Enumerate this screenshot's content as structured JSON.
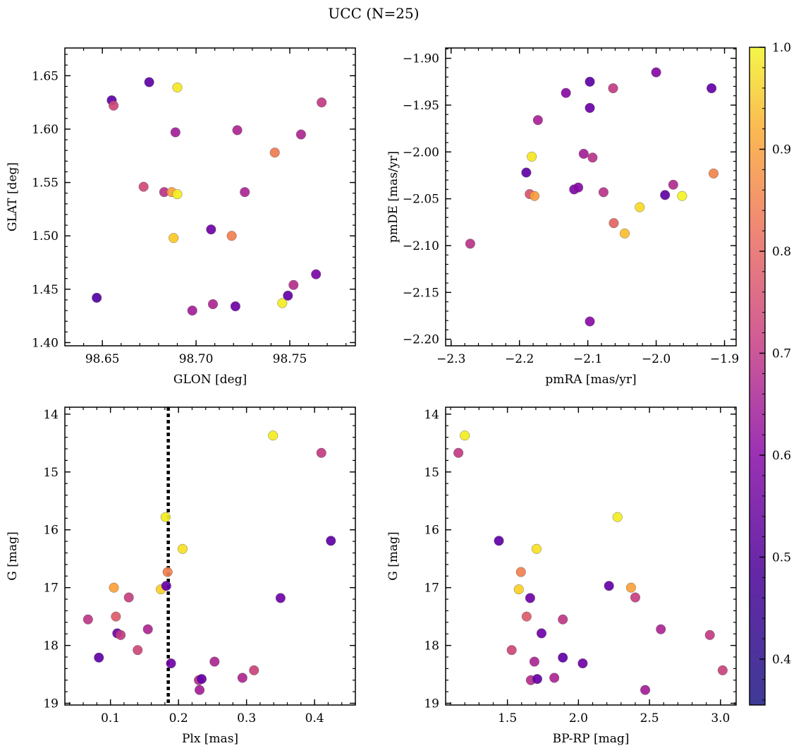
{
  "figure": {
    "title": "UCC (N=25)"
  },
  "colorbar": {
    "range": [
      0.355,
      1.0
    ],
    "ticks": [
      "0.4",
      "0.5",
      "0.6",
      "0.7",
      "0.8",
      "0.9",
      "1.0"
    ],
    "tick_values": [
      0.4,
      0.5,
      0.6,
      0.7,
      0.8,
      0.9,
      1.0
    ],
    "colormap": "plasma"
  },
  "chart_data": [
    {
      "type": "scatter",
      "xlabel": "GLON [deg]",
      "ylabel": "GLAT [deg]",
      "xlim": [
        98.63,
        98.785
      ],
      "ylim": [
        1.397,
        1.676
      ],
      "xticks": [
        98.65,
        98.7,
        98.75
      ],
      "xtick_labels": [
        "98.65",
        "98.70",
        "98.75"
      ],
      "yticks": [
        1.4,
        1.45,
        1.5,
        1.55,
        1.6,
        1.65
      ],
      "ytick_labels": [
        "1.40",
        "1.45",
        "1.50",
        "1.55",
        "1.60",
        "1.65"
      ],
      "points": [
        {
          "x": 98.647,
          "y": 1.442,
          "c": 0.4
        },
        {
          "x": 98.655,
          "y": 1.627,
          "c": 0.42
        },
        {
          "x": 98.656,
          "y": 1.622,
          "c": 0.65
        },
        {
          "x": 98.672,
          "y": 1.546,
          "c": 0.66
        },
        {
          "x": 98.675,
          "y": 1.644,
          "c": 0.42
        },
        {
          "x": 98.683,
          "y": 1.541,
          "c": 0.6
        },
        {
          "x": 98.687,
          "y": 1.541,
          "c": 0.85
        },
        {
          "x": 98.688,
          "y": 1.498,
          "c": 0.92
        },
        {
          "x": 98.689,
          "y": 1.597,
          "c": 0.55
        },
        {
          "x": 98.69,
          "y": 1.539,
          "c": 0.98
        },
        {
          "x": 98.69,
          "y": 1.639,
          "c": 0.97
        },
        {
          "x": 98.698,
          "y": 1.43,
          "c": 0.55
        },
        {
          "x": 98.708,
          "y": 1.506,
          "c": 0.45
        },
        {
          "x": 98.709,
          "y": 1.436,
          "c": 0.57
        },
        {
          "x": 98.719,
          "y": 1.5,
          "c": 0.78
        },
        {
          "x": 98.721,
          "y": 1.434,
          "c": 0.45
        },
        {
          "x": 98.722,
          "y": 1.599,
          "c": 0.57
        },
        {
          "x": 98.726,
          "y": 1.541,
          "c": 0.57
        },
        {
          "x": 98.742,
          "y": 1.578,
          "c": 0.77
        },
        {
          "x": 98.746,
          "y": 1.437,
          "c": 0.98
        },
        {
          "x": 98.749,
          "y": 1.444,
          "c": 0.43
        },
        {
          "x": 98.752,
          "y": 1.454,
          "c": 0.59
        },
        {
          "x": 98.756,
          "y": 1.595,
          "c": 0.57
        },
        {
          "x": 98.764,
          "y": 1.464,
          "c": 0.47
        },
        {
          "x": 98.767,
          "y": 1.625,
          "c": 0.62
        }
      ]
    },
    {
      "type": "scatter",
      "xlabel": "pmRA [mas/yr]",
      "ylabel": "pmDE [mas/yr]",
      "xlim": [
        -2.308,
        -1.883
      ],
      "ylim": [
        -2.207,
        -1.889
      ],
      "xticks": [
        -2.3,
        -2.2,
        -2.1,
        -2.0,
        -1.9
      ],
      "xtick_labels": [
        "−2.3",
        "−2.2",
        "−2.1",
        "−2.0",
        "−1.9"
      ],
      "yticks": [
        -2.2,
        -2.15,
        -2.1,
        -2.05,
        -2.0,
        -1.95,
        -1.9
      ],
      "ytick_labels": [
        "−2.20",
        "−2.15",
        "−2.10",
        "−2.05",
        "−2.00",
        "−1.95",
        "−1.90"
      ],
      "points": [
        {
          "x": -2.272,
          "y": -2.098,
          "c": 0.6
        },
        {
          "x": -2.19,
          "y": -2.022,
          "c": 0.42
        },
        {
          "x": -2.185,
          "y": -2.045,
          "c": 0.68
        },
        {
          "x": -2.182,
          "y": -2.005,
          "c": 0.97
        },
        {
          "x": -2.178,
          "y": -2.047,
          "c": 0.84
        },
        {
          "x": -2.173,
          "y": -1.966,
          "c": 0.56
        },
        {
          "x": -2.132,
          "y": -1.937,
          "c": 0.5
        },
        {
          "x": -2.12,
          "y": -2.04,
          "c": 0.48
        },
        {
          "x": -2.114,
          "y": -2.038,
          "c": 0.49
        },
        {
          "x": -2.106,
          "y": -2.002,
          "c": 0.55
        },
        {
          "x": -2.097,
          "y": -1.925,
          "c": 0.42
        },
        {
          "x": -2.097,
          "y": -1.953,
          "c": 0.44
        },
        {
          "x": -2.097,
          "y": -2.181,
          "c": 0.5
        },
        {
          "x": -2.093,
          "y": -2.006,
          "c": 0.6
        },
        {
          "x": -2.077,
          "y": -2.043,
          "c": 0.6
        },
        {
          "x": -2.063,
          "y": -1.932,
          "c": 0.62
        },
        {
          "x": -2.062,
          "y": -2.076,
          "c": 0.72
        },
        {
          "x": -2.046,
          "y": -2.087,
          "c": 0.9
        },
        {
          "x": -2.024,
          "y": -2.059,
          "c": 0.95
        },
        {
          "x": -2.0,
          "y": -1.915,
          "c": 0.49
        },
        {
          "x": -1.987,
          "y": -2.046,
          "c": 0.42
        },
        {
          "x": -1.975,
          "y": -2.035,
          "c": 0.58
        },
        {
          "x": -1.962,
          "y": -2.047,
          "c": 0.99
        },
        {
          "x": -1.919,
          "y": -1.932,
          "c": 0.43
        },
        {
          "x": -1.916,
          "y": -2.023,
          "c": 0.79
        }
      ]
    },
    {
      "type": "scatter",
      "xlabel": "Plx [mas]",
      "ylabel": "G [mag]",
      "xlim": [
        0.033,
        0.46
      ],
      "ylim": [
        19.03,
        13.88
      ],
      "xticks": [
        0.1,
        0.2,
        0.3,
        0.4
      ],
      "xtick_labels": [
        "0.1",
        "0.2",
        "0.3",
        "0.4"
      ],
      "yticks": [
        14,
        15,
        16,
        17,
        18,
        19
      ],
      "ytick_labels": [
        "14",
        "15",
        "16",
        "17",
        "18",
        "19"
      ],
      "vline": 0.185,
      "points": [
        {
          "x": 0.067,
          "y": 17.55,
          "c": 0.61
        },
        {
          "x": 0.083,
          "y": 18.21,
          "c": 0.42
        },
        {
          "x": 0.105,
          "y": 17.0,
          "c": 0.85
        },
        {
          "x": 0.108,
          "y": 17.5,
          "c": 0.7
        },
        {
          "x": 0.11,
          "y": 17.79,
          "c": 0.45
        },
        {
          "x": 0.115,
          "y": 17.82,
          "c": 0.62
        },
        {
          "x": 0.127,
          "y": 17.17,
          "c": 0.63
        },
        {
          "x": 0.14,
          "y": 18.08,
          "c": 0.65
        },
        {
          "x": 0.155,
          "y": 17.72,
          "c": 0.57
        },
        {
          "x": 0.174,
          "y": 17.03,
          "c": 0.93
        },
        {
          "x": 0.181,
          "y": 15.78,
          "c": 0.98
        },
        {
          "x": 0.182,
          "y": 16.97,
          "c": 0.43
        },
        {
          "x": 0.184,
          "y": 16.73,
          "c": 0.78
        },
        {
          "x": 0.189,
          "y": 18.31,
          "c": 0.45
        },
        {
          "x": 0.206,
          "y": 16.33,
          "c": 0.96
        },
        {
          "x": 0.23,
          "y": 18.6,
          "c": 0.59
        },
        {
          "x": 0.231,
          "y": 18.77,
          "c": 0.55
        },
        {
          "x": 0.234,
          "y": 18.58,
          "c": 0.43
        },
        {
          "x": 0.253,
          "y": 18.28,
          "c": 0.57
        },
        {
          "x": 0.294,
          "y": 18.56,
          "c": 0.57
        },
        {
          "x": 0.311,
          "y": 18.43,
          "c": 0.64
        },
        {
          "x": 0.339,
          "y": 14.37,
          "c": 0.98
        },
        {
          "x": 0.35,
          "y": 17.18,
          "c": 0.45
        },
        {
          "x": 0.41,
          "y": 14.67,
          "c": 0.62
        },
        {
          "x": 0.424,
          "y": 16.19,
          "c": 0.42
        }
      ]
    },
    {
      "type": "scatter",
      "xlabel": "BP-RP [mag]",
      "ylabel": "G [mag]",
      "xlim": [
        1.065,
        3.11
      ],
      "ylim": [
        19.03,
        13.88
      ],
      "xticks": [
        1.5,
        2.0,
        2.5,
        3.0
      ],
      "xtick_labels": [
        "1.5",
        "2.0",
        "2.5",
        "3.0"
      ],
      "yticks": [
        14,
        15,
        16,
        17,
        18,
        19
      ],
      "ytick_labels": [
        "14",
        "15",
        "16",
        "17",
        "18",
        "19"
      ],
      "points": [
        {
          "x": 1.155,
          "y": 14.67,
          "c": 0.62
        },
        {
          "x": 1.2,
          "y": 14.37,
          "c": 0.98
        },
        {
          "x": 1.44,
          "y": 16.19,
          "c": 0.42
        },
        {
          "x": 1.53,
          "y": 18.08,
          "c": 0.65
        },
        {
          "x": 1.58,
          "y": 17.03,
          "c": 0.93
        },
        {
          "x": 1.595,
          "y": 16.73,
          "c": 0.78
        },
        {
          "x": 1.635,
          "y": 17.5,
          "c": 0.7
        },
        {
          "x": 1.66,
          "y": 17.18,
          "c": 0.45
        },
        {
          "x": 1.665,
          "y": 18.6,
          "c": 0.59
        },
        {
          "x": 1.69,
          "y": 18.28,
          "c": 0.57
        },
        {
          "x": 1.705,
          "y": 16.33,
          "c": 0.96
        },
        {
          "x": 1.71,
          "y": 18.58,
          "c": 0.43
        },
        {
          "x": 1.74,
          "y": 17.79,
          "c": 0.45
        },
        {
          "x": 1.83,
          "y": 18.56,
          "c": 0.57
        },
        {
          "x": 1.89,
          "y": 17.55,
          "c": 0.61
        },
        {
          "x": 1.89,
          "y": 18.21,
          "c": 0.42
        },
        {
          "x": 2.03,
          "y": 18.31,
          "c": 0.45
        },
        {
          "x": 2.215,
          "y": 16.97,
          "c": 0.43
        },
        {
          "x": 2.275,
          "y": 15.78,
          "c": 0.98
        },
        {
          "x": 2.37,
          "y": 17.0,
          "c": 0.85
        },
        {
          "x": 2.4,
          "y": 17.17,
          "c": 0.63
        },
        {
          "x": 2.47,
          "y": 18.77,
          "c": 0.55
        },
        {
          "x": 2.58,
          "y": 17.72,
          "c": 0.57
        },
        {
          "x": 2.925,
          "y": 17.82,
          "c": 0.62
        },
        {
          "x": 3.015,
          "y": 18.43,
          "c": 0.64
        }
      ]
    }
  ]
}
